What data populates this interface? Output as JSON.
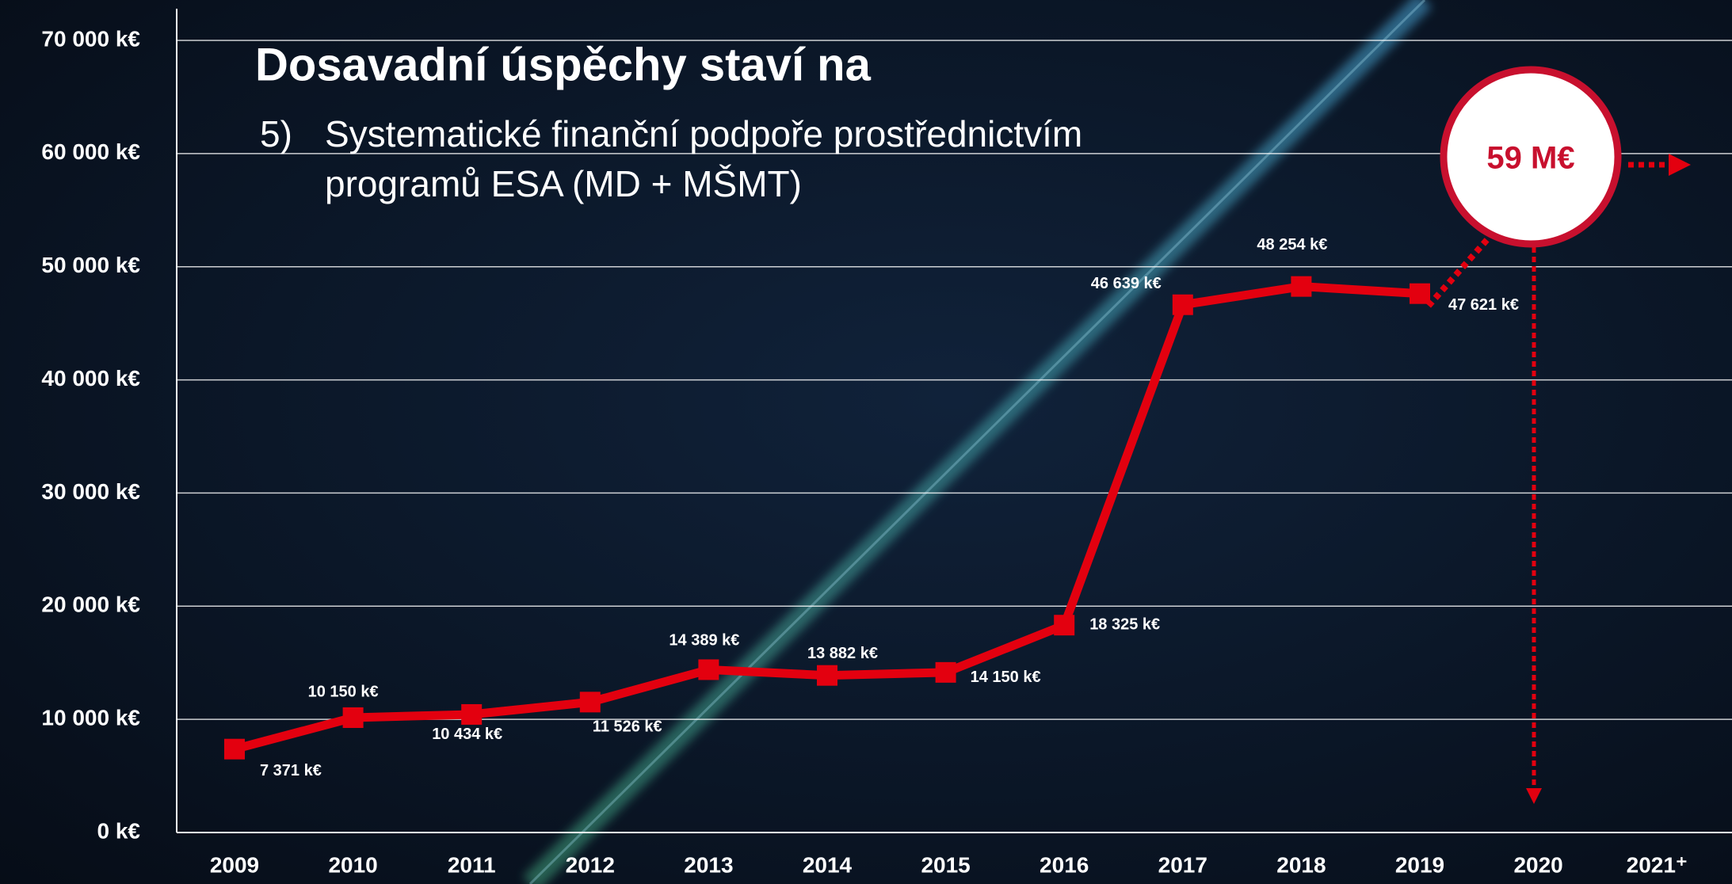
{
  "chart_data": {
    "type": "line",
    "title": "Dosavadní úspěchy staví na",
    "subtitle_number": "5)",
    "subtitle_lines": [
      "Systematické finanční podpoře prostřednictvím",
      "programů ESA (MD + MŠMT)"
    ],
    "categories": [
      "2009",
      "2010",
      "2011",
      "2012",
      "2013",
      "2014",
      "2015",
      "2016",
      "2017",
      "2018",
      "2019",
      "2020",
      "2021⁺"
    ],
    "series": [
      {
        "color": "#e3000f",
        "values": [
          7371,
          10150,
          10434,
          11526,
          14389,
          13882,
          14150,
          18325,
          46639,
          48254,
          47621,
          null,
          null
        ],
        "value_labels": [
          "7 371 k€",
          "10 150 k€",
          "10 434 k€",
          "11 526 k€",
          "14 389 k€",
          "13 882 k€",
          "14 150 k€",
          "18 325 k€",
          "46 639 k€",
          "48 254 k€",
          "47 621 k€",
          null,
          null
        ]
      }
    ],
    "ylim": [
      0,
      70000
    ],
    "yticks": [
      {
        "value": 0,
        "label": "0 k€"
      },
      {
        "value": 10000,
        "label": "10 000 k€"
      },
      {
        "value": 20000,
        "label": "20 000 k€"
      },
      {
        "value": 30000,
        "label": "30 000 k€"
      },
      {
        "value": 40000,
        "label": "40 000 k€"
      },
      {
        "value": 50000,
        "label": "50 000 k€"
      },
      {
        "value": 60000,
        "label": "60 000 k€"
      },
      {
        "value": 70000,
        "label": "70 000 k€"
      }
    ],
    "grid": true,
    "annotation": "59 M€"
  }
}
